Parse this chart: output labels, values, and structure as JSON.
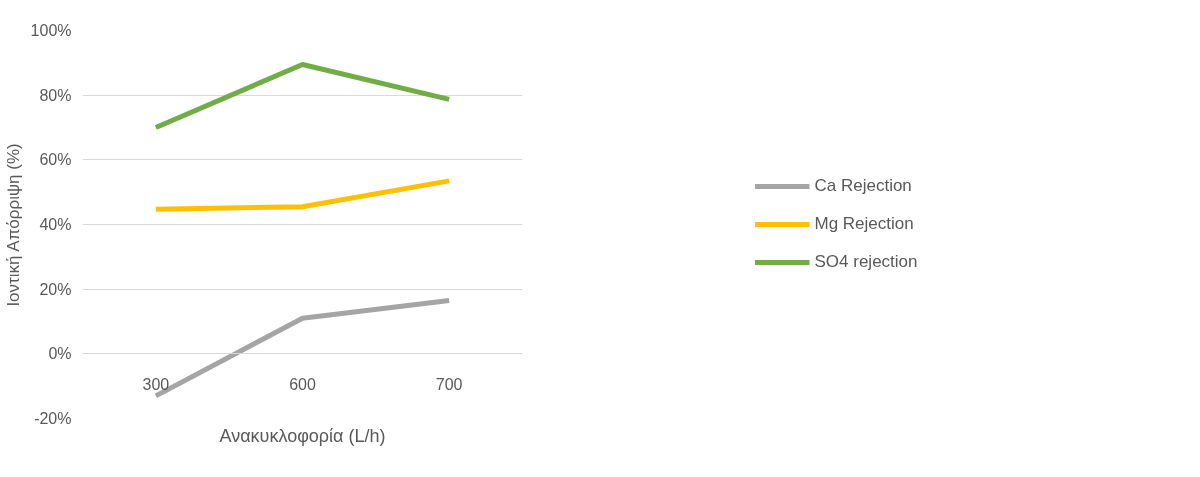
{
  "chart_data": {
    "type": "line",
    "xlabel": "Ανακυκλοφορία (L/h)",
    "ylabel": "Ιοντική Απόρριψη (%)",
    "categories": [
      "300",
      "600",
      "700"
    ],
    "series": [
      {
        "name": "Ca Rejection",
        "color": "#a5a5a5",
        "values": [
          -13,
          11,
          16.5
        ]
      },
      {
        "name": "Mg Rejection",
        "color": "#ffc000",
        "values": [
          44.7,
          45.5,
          53.5
        ]
      },
      {
        "name": "SO4 rejection",
        "color": "#70ad47",
        "values": [
          70,
          89.5,
          78.7
        ]
      }
    ],
    "ylim": [
      -20,
      100
    ],
    "yticks": [
      {
        "value": -20,
        "label": "-20%"
      },
      {
        "value": 0,
        "label": "0%"
      },
      {
        "value": 20,
        "label": "20%"
      },
      {
        "value": 40,
        "label": "40%"
      },
      {
        "value": 60,
        "label": "60%"
      },
      {
        "value": 80,
        "label": "80%"
      },
      {
        "value": 100,
        "label": "100%"
      }
    ],
    "grid": "y",
    "legend": "right",
    "marker": "none",
    "line_style": "solid"
  }
}
